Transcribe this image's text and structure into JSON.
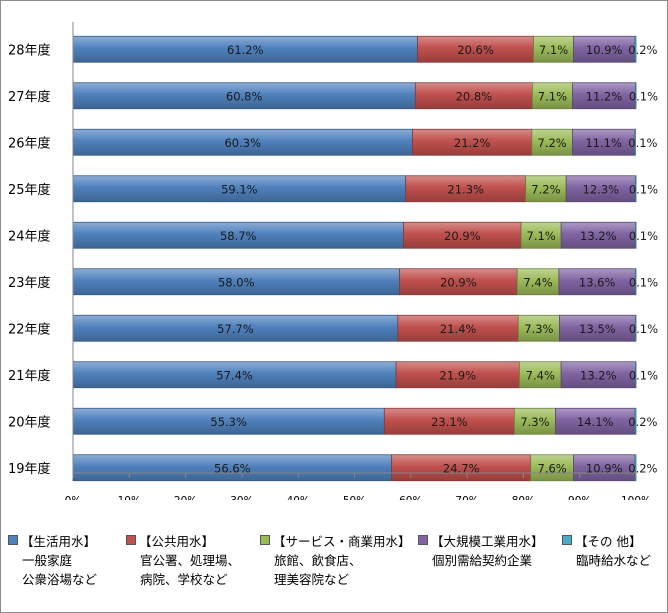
{
  "chart_data": {
    "type": "bar",
    "orientation": "horizontal",
    "stacked": true,
    "percent": true,
    "categories": [
      "28年度",
      "27年度",
      "26年度",
      "25年度",
      "24年度",
      "23年度",
      "22年度",
      "21年度",
      "20年度",
      "19年度"
    ],
    "series": [
      {
        "name": "【生活用水】",
        "color": "#4f81bd",
        "values": [
          61.2,
          60.8,
          60.3,
          59.1,
          58.7,
          58.0,
          57.7,
          57.4,
          55.3,
          56.6
        ],
        "labels": [
          "61.2%",
          "60.8%",
          "60.3%",
          "59.1%",
          "58.7%",
          "58.0%",
          "57.7%",
          "57.4%",
          "55.3%",
          "56.6%"
        ]
      },
      {
        "name": "【公共用水】",
        "color": "#c0504d",
        "values": [
          20.6,
          20.8,
          21.2,
          21.3,
          20.9,
          20.9,
          21.4,
          21.9,
          23.1,
          24.7
        ],
        "labels": [
          "20.6%",
          "20.8%",
          "21.2%",
          "21.3%",
          "20.9%",
          "20.9%",
          "21.4%",
          "21.9%",
          "23.1%",
          "24.7%"
        ]
      },
      {
        "name": "【サービス・商業用水】",
        "color": "#9bbb59",
        "values": [
          7.1,
          7.1,
          7.2,
          7.2,
          7.1,
          7.4,
          7.3,
          7.4,
          7.3,
          7.6
        ],
        "labels": [
          "7.1%",
          "7.1%",
          "7.2%",
          "7.2%",
          "7.1%",
          "7.4%",
          "7.3%",
          "7.4%",
          "7.3%",
          "7.6%"
        ]
      },
      {
        "name": "【大規模工業用水】",
        "color": "#8064a2",
        "values": [
          10.9,
          11.2,
          11.1,
          12.3,
          13.2,
          13.6,
          13.5,
          13.2,
          14.1,
          10.9
        ],
        "labels": [
          "10.9%",
          "11.2%",
          "11.1%",
          "12.3%",
          "13.2%",
          "13.6%",
          "13.5%",
          "13.2%",
          "14.1%",
          "10.9%"
        ]
      },
      {
        "name": "【その 他】",
        "color": "#4bacc6",
        "values": [
          0.2,
          0.1,
          0.1,
          0.1,
          0.1,
          0.1,
          0.1,
          0.1,
          0.2,
          0.2
        ],
        "labels": [
          "0.2%",
          "0.1%",
          "0.1%",
          "0.1%",
          "0.1%",
          "0.1%",
          "0.1%",
          "0.1%",
          "0.2%",
          "0.2%"
        ]
      }
    ],
    "xlim": [
      0,
      100
    ],
    "xticks": [
      "0%",
      "10%",
      "20%",
      "30%",
      "40%",
      "50%",
      "60%",
      "70%",
      "80%",
      "90%",
      "100%"
    ],
    "grid": false,
    "legend_position": "bottom"
  },
  "legend": [
    {
      "name": "【生活用水】",
      "lines": [
        "一般家庭",
        "公衆浴場など"
      ]
    },
    {
      "name": "【公共用水】",
      "lines": [
        "官公署、処理場、",
        "病院、学校など"
      ]
    },
    {
      "name": "【サービス・商業用水】",
      "lines": [
        "旅館、飲食店、",
        "理美容院など"
      ]
    },
    {
      "name": "【大規模工業用水】",
      "lines": [
        "個別需給契約企業"
      ]
    },
    {
      "name": "【その 他】",
      "lines": [
        "臨時給水など"
      ]
    }
  ]
}
